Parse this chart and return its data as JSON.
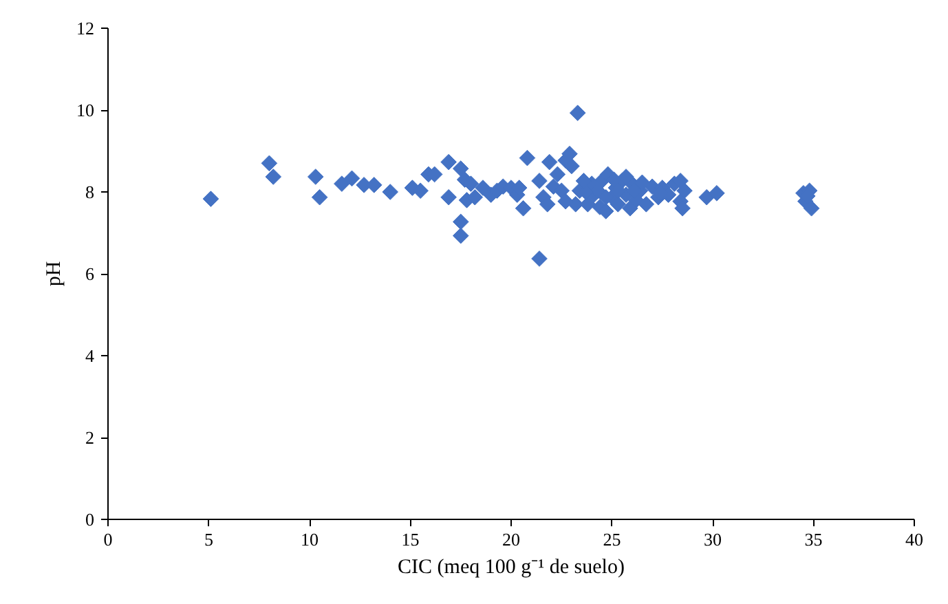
{
  "chart_data": {
    "type": "scatter",
    "xlabel": "CIC (meq 100 g⁻¹ de suelo)",
    "ylabel": "pH",
    "marker": "diamond",
    "grid": false,
    "xlim": [
      0,
      40
    ],
    "xticks": [
      0,
      5,
      10,
      15,
      20,
      25,
      30,
      35,
      40
    ],
    "ylim": [
      0,
      12
    ],
    "yticks": [
      0,
      2,
      4,
      6,
      8,
      10,
      12
    ],
    "series": [
      {
        "color": "#4472c4",
        "x": [
          5.1,
          8.0,
          8.2,
          10.3,
          10.5,
          11.6,
          12.1,
          12.7,
          13.2,
          14.0,
          15.1,
          15.5,
          15.9,
          16.2,
          16.9,
          16.9,
          17.5,
          17.7,
          17.8,
          17.5,
          17.5,
          18.0,
          18.2,
          18.6,
          19.0,
          19.3,
          19.6,
          20.0,
          20.3,
          20.4,
          20.8,
          20.6,
          21.4,
          21.4,
          21.6,
          21.8,
          21.9,
          22.1,
          22.3,
          22.5,
          22.7,
          22.9,
          23.0,
          23.2,
          23.3,
          22.7,
          23.4,
          23.8,
          24.1,
          24.4,
          24.5,
          24.7,
          24.8,
          25.0,
          25.2,
          25.3,
          25.5,
          25.7,
          25.9,
          26.0,
          26.2,
          26.4,
          26.7,
          27.0,
          27.3,
          27.5,
          27.8,
          28.1,
          28.4,
          28.5,
          28.6,
          28.4,
          29.7,
          30.2,
          34.5,
          34.6,
          34.8,
          34.9,
          34.7,
          24.0,
          24.3,
          24.7,
          25.1,
          25.3,
          25.7,
          26.1,
          26.5,
          27.4,
          23.7,
          23.6
        ],
        "values": [
          7.83,
          8.7,
          8.37,
          8.37,
          7.87,
          8.2,
          8.33,
          8.17,
          8.17,
          8.0,
          8.1,
          8.03,
          8.43,
          8.43,
          8.73,
          7.87,
          8.57,
          8.3,
          7.8,
          7.27,
          6.93,
          8.2,
          7.87,
          8.1,
          7.93,
          8.03,
          8.13,
          8.1,
          7.93,
          8.1,
          8.83,
          7.6,
          8.27,
          6.37,
          7.87,
          7.7,
          8.73,
          8.13,
          8.43,
          8.03,
          8.77,
          8.93,
          8.63,
          7.7,
          9.93,
          7.77,
          8.03,
          7.7,
          7.93,
          7.63,
          8.27,
          7.53,
          8.43,
          7.87,
          8.1,
          7.7,
          8.27,
          7.93,
          7.6,
          8.2,
          7.8,
          8.03,
          7.7,
          8.13,
          7.87,
          8.1,
          7.93,
          8.2,
          7.77,
          7.6,
          8.03,
          8.27,
          7.87,
          7.97,
          7.97,
          7.77,
          8.03,
          7.6,
          7.9,
          8.2,
          8.03,
          7.87,
          8.3,
          8.03,
          8.37,
          8.03,
          8.23,
          7.97,
          8.0,
          8.27
        ]
      }
    ]
  }
}
